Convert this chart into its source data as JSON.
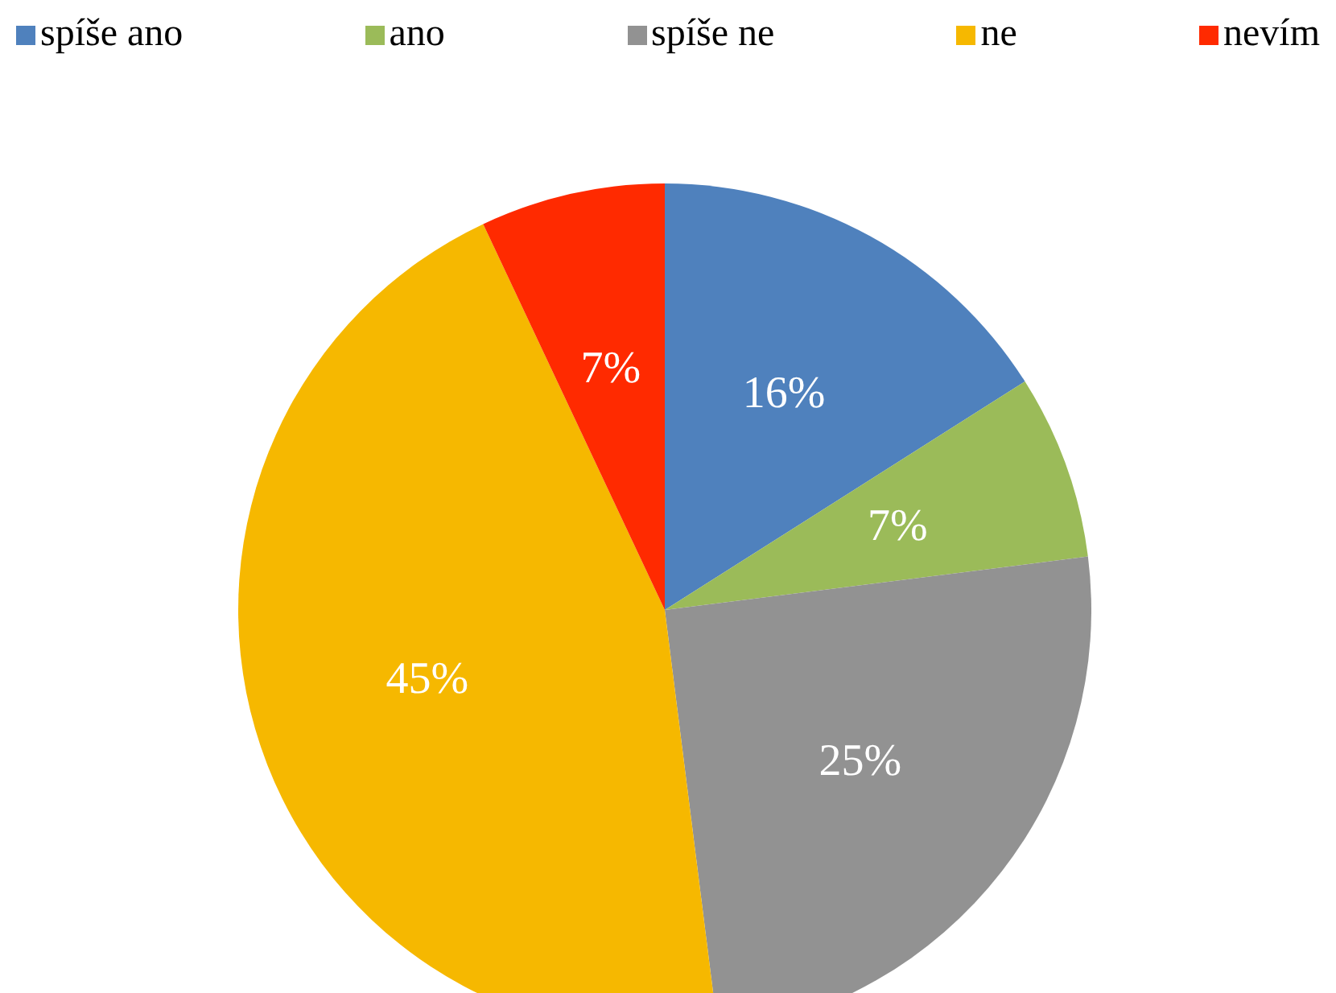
{
  "chart_data": {
    "type": "pie",
    "categories": [
      "spíše ano",
      "ano",
      "spíše ne",
      "ne",
      "nevím"
    ],
    "values": [
      16,
      7,
      25,
      45,
      7
    ],
    "colors": [
      "#4f81bd",
      "#9bbb59",
      "#929292",
      "#f6b800",
      "#ff2a00"
    ],
    "value_labels": [
      "16%",
      "7%",
      "25%",
      "45%",
      "7%"
    ],
    "legend": "top"
  }
}
